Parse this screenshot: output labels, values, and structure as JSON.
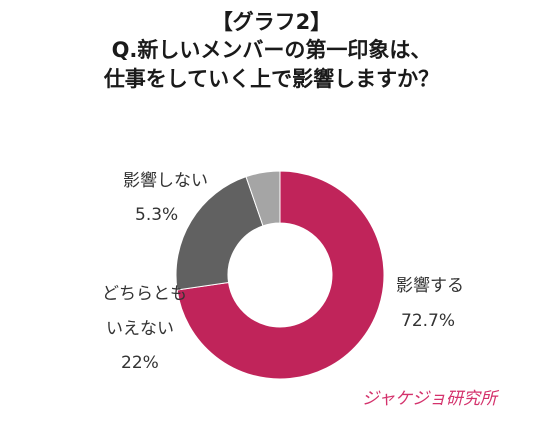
{
  "header": {
    "tag": "【グラフ2】",
    "line1": "Q.新しいメンバーの第一印象は、",
    "line2": "仕事をしていく上で影響しますか？"
  },
  "labels": {
    "influence": {
      "name": "影響する",
      "value": "72.7%"
    },
    "neither": {
      "name_line1": "どちらとも",
      "name_line2": "いえない",
      "value": "22%"
    },
    "no_influence": {
      "name": "影響しない",
      "value": "5.3%"
    }
  },
  "logo": {
    "text": "ジャケジョ研究所"
  },
  "chart_data": {
    "type": "pie",
    "categories": [
      "影響する",
      "どちらともいえない",
      "影響しない"
    ],
    "values": [
      72.7,
      22,
      5.3
    ],
    "colors": [
      "#c0245a",
      "#616161",
      "#a5a5a5"
    ],
    "donut": true,
    "title": "Q.新しいメンバーの第一印象は、仕事をしていく上で影響しますか？"
  }
}
